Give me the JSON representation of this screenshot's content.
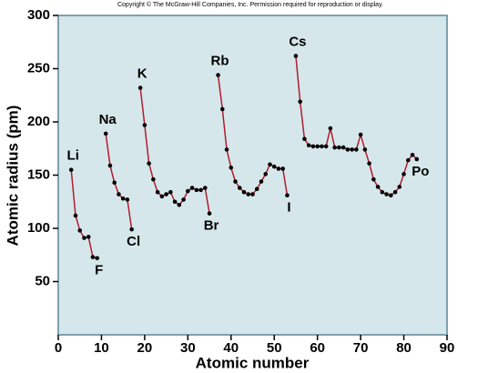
{
  "chart_data": {
    "type": "line",
    "title": "Copyright © The McGraw-Hill Companies, Inc. Permission required for reproduction or display.",
    "x_label": "Atomic number",
    "y_label": "Atomic radius (pm)",
    "x": [
      3,
      4,
      5,
      6,
      7,
      8,
      9,
      10,
      11,
      12,
      13,
      14,
      15,
      16,
      17,
      18,
      19,
      20,
      21,
      22,
      23,
      24,
      25,
      26,
      27,
      28,
      29,
      30,
      31,
      32,
      33,
      34,
      35,
      36,
      37,
      38,
      39,
      40,
      41,
      42,
      43,
      44,
      45,
      46,
      47,
      48,
      49,
      50,
      51,
      52,
      53,
      54,
      55,
      56,
      57,
      58,
      59,
      60,
      61,
      62,
      63,
      64,
      65,
      66,
      67,
      68,
      69,
      70,
      71,
      72,
      73,
      74,
      75,
      76,
      77,
      78,
      79,
      80,
      81,
      82,
      83
    ],
    "series": [
      {
        "color": "#b01c2e",
        "marker_color": "#000000",
        "values": [
          155,
          112,
          98,
          91,
          92,
          73,
          72,
          null,
          189,
          159,
          143,
          132,
          128,
          127,
          99,
          null,
          232,
          197,
          161,
          146,
          134,
          130,
          132,
          134,
          125,
          122,
          127,
          135,
          138,
          136,
          136,
          138,
          114,
          null,
          244,
          212,
          174,
          157,
          144,
          138,
          134,
          132,
          132,
          137,
          144,
          151,
          160,
          158,
          156,
          156,
          131,
          null,
          262,
          219,
          184,
          178,
          177,
          177,
          177,
          177,
          194,
          176,
          176,
          176,
          174,
          174,
          174,
          188,
          174,
          161,
          146,
          139,
          134,
          132,
          131,
          134,
          139,
          151,
          164,
          169,
          165
        ]
      }
    ],
    "annotations": [
      {
        "text": "Li",
        "x": 3,
        "place": "above"
      },
      {
        "text": "F",
        "x": 9,
        "place": "below"
      },
      {
        "text": "Na",
        "x": 11,
        "place": "above"
      },
      {
        "text": "Cl",
        "x": 17,
        "place": "below"
      },
      {
        "text": "K",
        "x": 19,
        "place": "above"
      },
      {
        "text": "Br",
        "x": 35,
        "place": "below"
      },
      {
        "text": "Rb",
        "x": 37,
        "place": "above"
      },
      {
        "text": "I",
        "x": 53,
        "place": "below"
      },
      {
        "text": "Cs",
        "x": 55,
        "place": "above"
      },
      {
        "text": "Po",
        "x": 83,
        "place": "below"
      }
    ],
    "xlim": [
      0,
      90
    ],
    "xticks": [
      0,
      10,
      20,
      30,
      40,
      50,
      60,
      70,
      80,
      90
    ],
    "ylim": [
      0,
      300
    ],
    "yticks": [
      50,
      100,
      150,
      200,
      250,
      300
    ]
  }
}
